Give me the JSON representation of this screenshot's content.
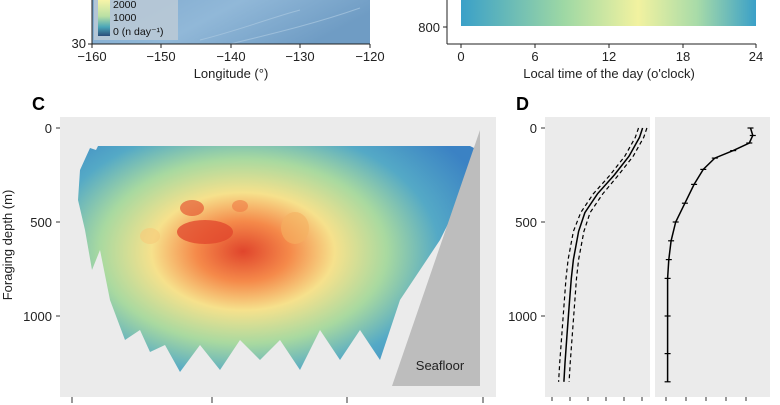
{
  "panels": {
    "A": {
      "xlabel": "Longitude (°)",
      "x_ticks": [
        "−160",
        "−150",
        "−140",
        "−130",
        "−120"
      ],
      "y_ticks": [
        "30"
      ],
      "legend": {
        "entries": [
          "2000",
          "1000",
          "0 (n day⁻¹)"
        ]
      },
      "colors": {
        "ocean_light": "#8fb6d6",
        "ocean_dark": "#6f9cc4",
        "legend_bg": "#b9c9d6"
      }
    },
    "B": {
      "xlabel": "Local time of the day (o'clock)",
      "x_ticks": [
        "0",
        "6",
        "12",
        "18",
        "24"
      ],
      "y_ticks": [
        "800"
      ]
    },
    "C": {
      "label": "C",
      "ylabel": "Foraging depth (m)",
      "y_ticks": [
        "0",
        "500",
        "1000"
      ],
      "seafloor_label": "Seafloor",
      "colors": {
        "panel_bg": "#ebebeb",
        "seafloor": "#bdbdbd",
        "low": "#3b82c4",
        "high": "#d7301f"
      }
    },
    "D": {
      "label": "D",
      "y_ticks": [
        "0",
        "500",
        "1000"
      ],
      "colors": {
        "panel_bg": "#ebebeb",
        "line": "#000000"
      }
    }
  },
  "chart_data": [
    {
      "type": "heatmap",
      "panel": "C",
      "ylabel": "Foraging depth (m)",
      "ylim": [
        1400,
        0
      ],
      "y_ticks": [
        0,
        500,
        1000
      ],
      "grid": false,
      "annotations": [
        "Seafloor"
      ],
      "density_peak_depth_range_m": [
        450,
        650
      ],
      "depth_data_range_m": [
        100,
        1380
      ]
    },
    {
      "type": "line",
      "panel": "D-left",
      "ylim": [
        1400,
        0
      ],
      "y_ticks": [
        0,
        500,
        1000
      ],
      "series": [
        {
          "line_style": "solid",
          "x": [
            0.93,
            0.9,
            0.8,
            0.66,
            0.5,
            0.38,
            0.32,
            0.27,
            0.25,
            0.23,
            0.21,
            0.19,
            0.18
          ],
          "y": [
            0,
            50,
            150,
            250,
            350,
            450,
            550,
            700,
            800,
            950,
            1100,
            1250,
            1350
          ]
        },
        {
          "line_style": "dashed",
          "x": [
            0.97,
            0.94,
            0.84,
            0.7,
            0.55,
            0.43,
            0.37,
            0.32,
            0.3,
            0.28,
            0.26,
            0.24,
            0.23
          ],
          "y": [
            0,
            50,
            150,
            250,
            350,
            450,
            550,
            700,
            800,
            950,
            1100,
            1250,
            1350
          ]
        },
        {
          "line_style": "dashed",
          "x": [
            0.89,
            0.86,
            0.76,
            0.62,
            0.46,
            0.34,
            0.27,
            0.22,
            0.2,
            0.18,
            0.16,
            0.14,
            0.13
          ],
          "y": [
            0,
            50,
            150,
            250,
            350,
            450,
            550,
            700,
            800,
            950,
            1100,
            1250,
            1350
          ]
        }
      ]
    },
    {
      "type": "line",
      "panel": "D-right",
      "ylim": [
        1400,
        0
      ],
      "y_ticks": [
        0,
        500,
        1000
      ],
      "series": [
        {
          "line_style": "solid-with-errorbars",
          "x": [
            0.83,
            0.85,
            0.82,
            0.68,
            0.52,
            0.42,
            0.34,
            0.26,
            0.18,
            0.14,
            0.12,
            0.11,
            0.11,
            0.11,
            0.11
          ],
          "y": [
            0,
            40,
            80,
            120,
            160,
            220,
            300,
            400,
            500,
            600,
            700,
            800,
            1000,
            1200,
            1350
          ]
        }
      ]
    }
  ]
}
